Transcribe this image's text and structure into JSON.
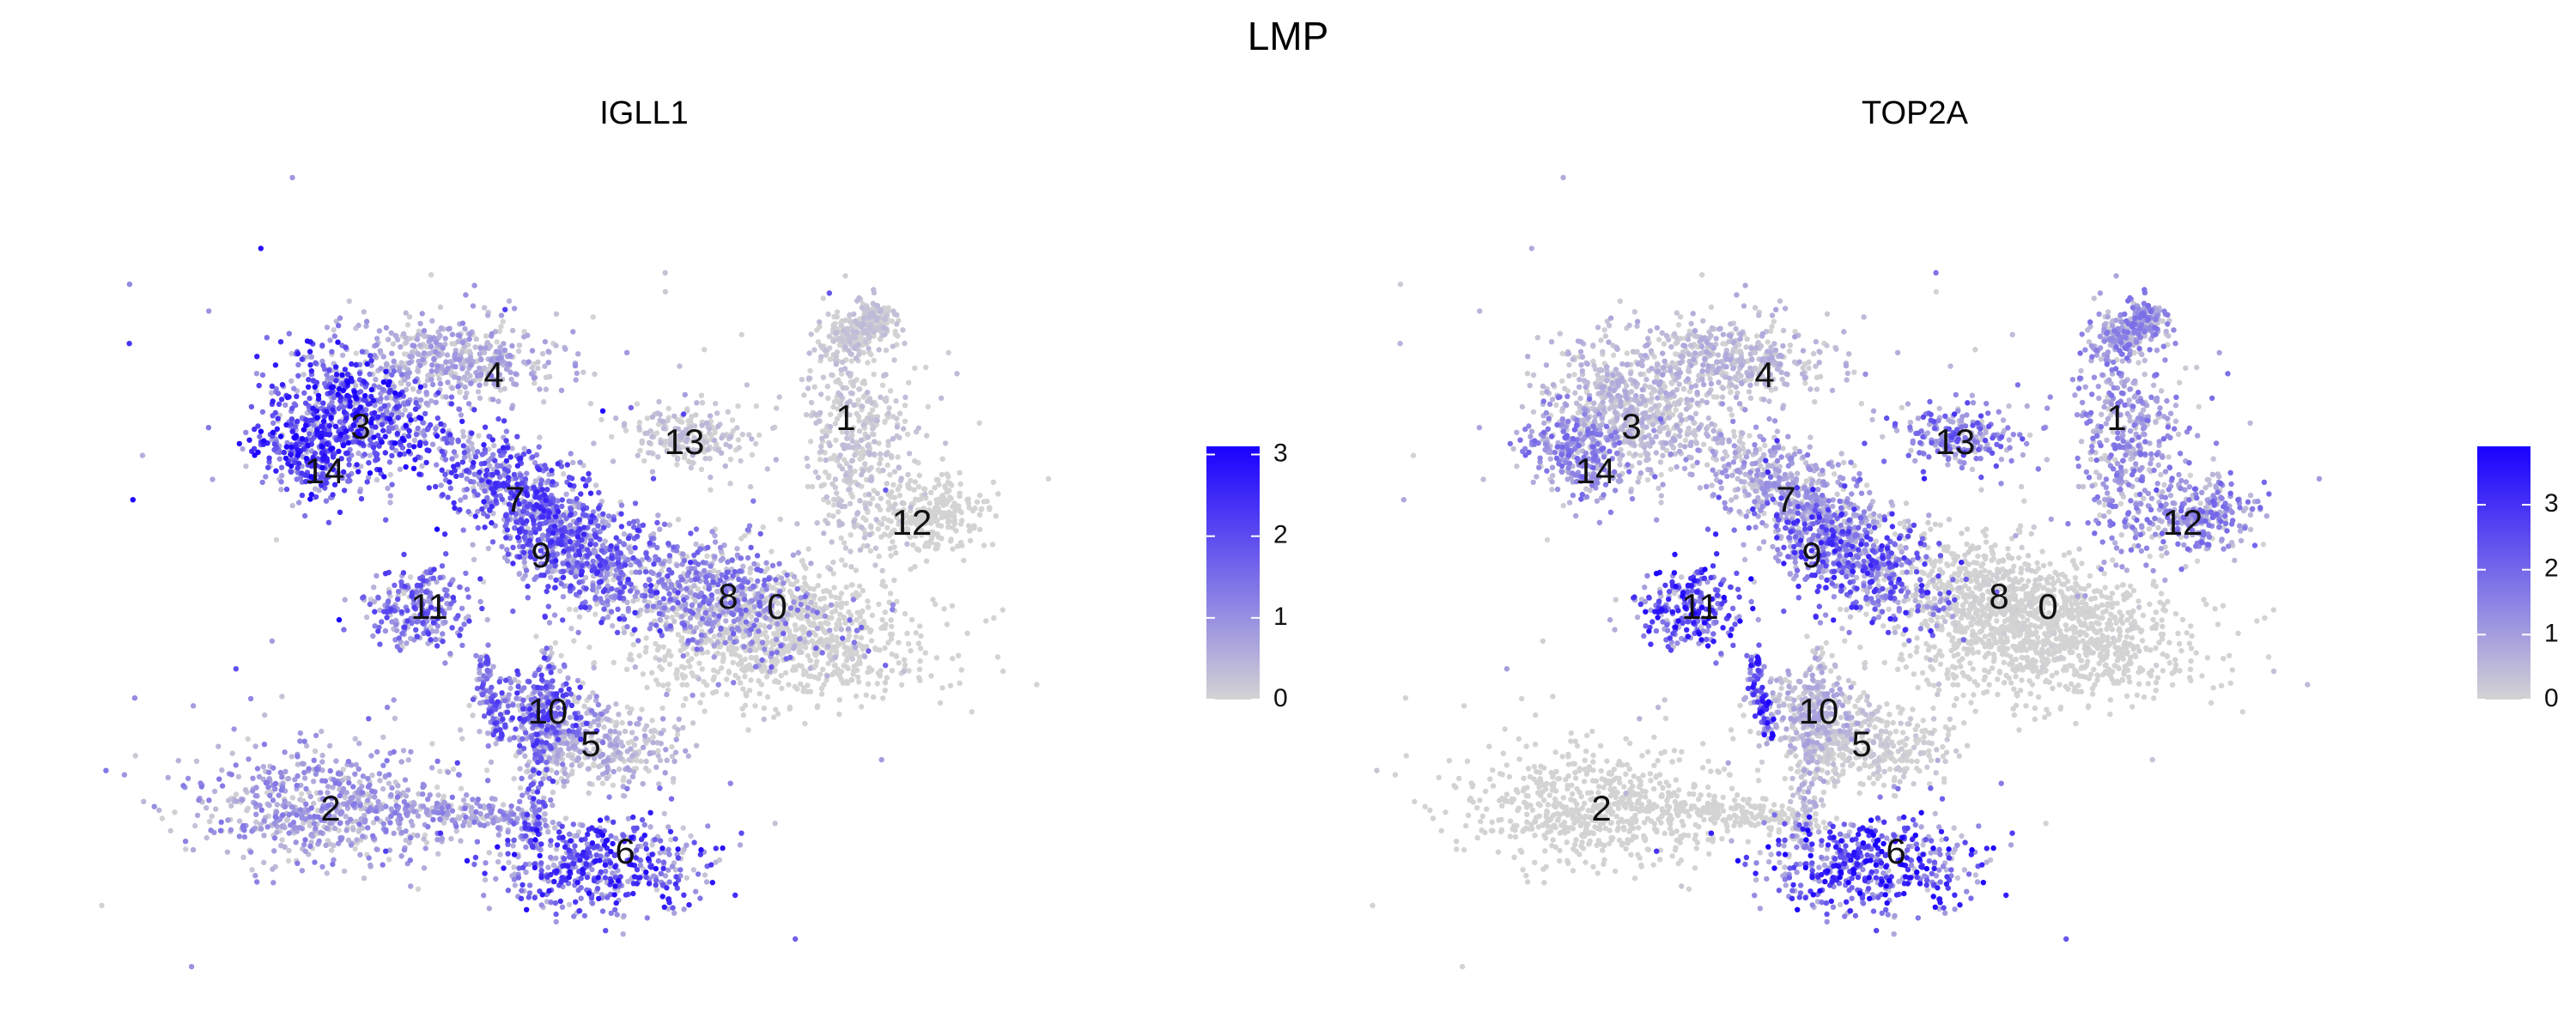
{
  "title": "LMP",
  "chart_data": [
    {
      "type": "scatter",
      "title": "IGLL1",
      "xlabel": "",
      "ylabel": "",
      "feature": "IGLL1",
      "colorscale": {
        "low": "#d3d3d3",
        "high": "#1a00ff",
        "min": 0,
        "max": 3.1,
        "ticks": [
          0,
          1,
          2,
          3
        ]
      },
      "clusters": [
        {
          "label": "0",
          "expr": 0.15
        },
        {
          "label": "1",
          "expr": 0.35
        },
        {
          "label": "2",
          "expr": 0.9
        },
        {
          "label": "3",
          "expr": 1.9
        },
        {
          "label": "4",
          "expr": 0.7
        },
        {
          "label": "5",
          "expr": 0.6
        },
        {
          "label": "6",
          "expr": 1.8
        },
        {
          "label": "7",
          "expr": 1.6
        },
        {
          "label": "8",
          "expr": 1.1
        },
        {
          "label": "9",
          "expr": 1.5
        },
        {
          "label": "10",
          "expr": 1.5
        },
        {
          "label": "11",
          "expr": 1.4
        },
        {
          "label": "12",
          "expr": 0.1
        },
        {
          "label": "13",
          "expr": 0.4
        },
        {
          "label": "14",
          "expr": 1.9
        }
      ]
    },
    {
      "type": "scatter",
      "title": "TOP2A",
      "xlabel": "",
      "ylabel": "",
      "feature": "TOP2A",
      "colorscale": {
        "low": "#d3d3d3",
        "high": "#1a00ff",
        "min": 0,
        "max": 3.9,
        "ticks": [
          0,
          1,
          2,
          3
        ]
      },
      "clusters": [
        {
          "label": "0",
          "expr": 0.1
        },
        {
          "label": "1",
          "expr": 1.2
        },
        {
          "label": "2",
          "expr": 0.1
        },
        {
          "label": "3",
          "expr": 0.6
        },
        {
          "label": "4",
          "expr": 0.6
        },
        {
          "label": "5",
          "expr": 0.3
        },
        {
          "label": "6",
          "expr": 2.4
        },
        {
          "label": "7",
          "expr": 0.9
        },
        {
          "label": "8",
          "expr": 0.2
        },
        {
          "label": "9",
          "expr": 2.0
        },
        {
          "label": "10",
          "expr": 0.7
        },
        {
          "label": "11",
          "expr": 2.3
        },
        {
          "label": "12",
          "expr": 1.3
        },
        {
          "label": "13",
          "expr": 1.6
        },
        {
          "label": "14",
          "expr": 1.3
        }
      ]
    }
  ]
}
